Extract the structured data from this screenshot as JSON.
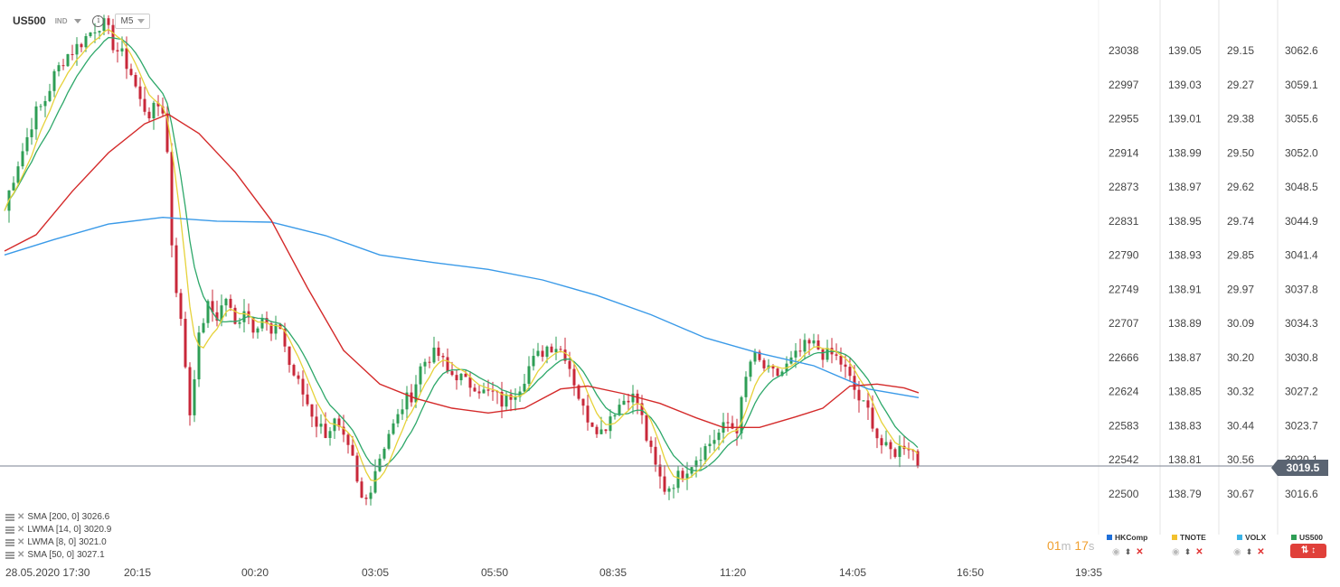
{
  "header": {
    "symbol": "US500",
    "symbol_type": "IND",
    "info_icon": "info-icon",
    "timeframe": "M5"
  },
  "current_price": "3019.5",
  "timer": {
    "min": "01",
    "min_unit": "m",
    "sec": "17",
    "sec_unit": "s"
  },
  "indicators": [
    {
      "label": "SMA [200,  0]",
      "value": "3026.6"
    },
    {
      "label": "LWMA [14,  0]",
      "value": "3020.9"
    },
    {
      "label": "LWMA [8,  0]",
      "value": "3021.0"
    },
    {
      "label": "SMA [50,  0]",
      "value": "3027.1"
    }
  ],
  "symbols": [
    {
      "name": "HKComp",
      "color": "#1e6fd9"
    },
    {
      "name": "TNOTE",
      "color": "#f2c12e"
    },
    {
      "name": "VOLX",
      "color": "#3bb3e6"
    },
    {
      "name": "US500",
      "color": "#2e9e55"
    }
  ],
  "chart_data": {
    "type": "candlestick",
    "x_ticks": [
      "28.05.2020  17:30",
      "20:15",
      "00:20",
      "03:05",
      "05:50",
      "08:35",
      "11:20",
      "14:05",
      "16:50",
      "19:35"
    ],
    "axes": [
      {
        "name": "HKComp",
        "ticks": [
          "23038",
          "22997",
          "22955",
          "22914",
          "22873",
          "22831",
          "22790",
          "22749",
          "22707",
          "22666",
          "22624",
          "22583",
          "22542",
          "22500"
        ]
      },
      {
        "name": "TNOTE",
        "ticks": [
          "139.05",
          "139.03",
          "139.01",
          "138.99",
          "138.97",
          "138.95",
          "138.93",
          "138.91",
          "138.89",
          "138.87",
          "138.85",
          "138.83",
          "138.81",
          "138.79"
        ]
      },
      {
        "name": "VOLX",
        "ticks": [
          "29.15",
          "29.27",
          "29.38",
          "29.50",
          "29.62",
          "29.74",
          "29.85",
          "29.97",
          "30.09",
          "30.20",
          "30.32",
          "30.44",
          "30.56",
          "30.67"
        ]
      },
      {
        "name": "US500",
        "ticks": [
          "3062.6",
          "3059.1",
          "3055.6",
          "3052.0",
          "3048.5",
          "3044.9",
          "3041.4",
          "3037.8",
          "3034.3",
          "3030.8",
          "3027.2",
          "3023.7",
          "3020.1",
          "3016.6"
        ]
      }
    ],
    "y_range": [
      3015.0,
      3066.0
    ],
    "close_path": [
      [
        0,
        3044
      ],
      [
        10,
        3048
      ],
      [
        20,
        3051
      ],
      [
        28,
        3053
      ],
      [
        38,
        3056
      ],
      [
        48,
        3057
      ],
      [
        60,
        3060
      ],
      [
        72,
        3062
      ],
      [
        85,
        3063
      ],
      [
        95,
        3064
      ],
      [
        105,
        3065
      ],
      [
        112,
        3065.5
      ],
      [
        118,
        3065
      ],
      [
        126,
        3063
      ],
      [
        136,
        3062
      ],
      [
        146,
        3060
      ],
      [
        156,
        3057
      ],
      [
        166,
        3056
      ],
      [
        176,
        3057
      ],
      [
        184,
        3056
      ],
      [
        186,
        3048
      ],
      [
        192,
        3040
      ],
      [
        198,
        3036
      ],
      [
        204,
        3031
      ],
      [
        210,
        3025
      ],
      [
        216,
        3030
      ],
      [
        222,
        3034
      ],
      [
        230,
        3036
      ],
      [
        240,
        3035
      ],
      [
        250,
        3037
      ],
      [
        260,
        3034
      ],
      [
        270,
        3036
      ],
      [
        280,
        3034
      ],
      [
        290,
        3035
      ],
      [
        300,
        3033
      ],
      [
        310,
        3034
      ],
      [
        320,
        3030
      ],
      [
        330,
        3028
      ],
      [
        340,
        3026
      ],
      [
        350,
        3024
      ],
      [
        360,
        3023
      ],
      [
        370,
        3024
      ],
      [
        380,
        3022
      ],
      [
        390,
        3020
      ],
      [
        398,
        3016
      ],
      [
        406,
        3016
      ],
      [
        414,
        3019
      ],
      [
        422,
        3021
      ],
      [
        430,
        3023
      ],
      [
        438,
        3024
      ],
      [
        446,
        3026
      ],
      [
        456,
        3027
      ],
      [
        466,
        3030
      ],
      [
        476,
        3031
      ],
      [
        486,
        3031
      ],
      [
        496,
        3029
      ],
      [
        506,
        3029
      ],
      [
        516,
        3028
      ],
      [
        526,
        3028
      ],
      [
        536,
        3027
      ],
      [
        546,
        3027
      ],
      [
        556,
        3026
      ],
      [
        566,
        3027
      ],
      [
        576,
        3028
      ],
      [
        586,
        3030
      ],
      [
        596,
        3031
      ],
      [
        606,
        3032
      ],
      [
        616,
        3032
      ],
      [
        626,
        3031
      ],
      [
        636,
        3028
      ],
      [
        646,
        3025
      ],
      [
        656,
        3024
      ],
      [
        666,
        3023
      ],
      [
        676,
        3025
      ],
      [
        686,
        3026
      ],
      [
        696,
        3027
      ],
      [
        706,
        3026
      ],
      [
        716,
        3022
      ],
      [
        726,
        3019
      ],
      [
        736,
        3017
      ],
      [
        746,
        3018
      ],
      [
        756,
        3019
      ],
      [
        766,
        3020
      ],
      [
        776,
        3021
      ],
      [
        786,
        3022
      ],
      [
        796,
        3023
      ],
      [
        806,
        3024
      ],
      [
        814,
        3023
      ],
      [
        820,
        3026
      ],
      [
        826,
        3029
      ],
      [
        832,
        3031
      ],
      [
        842,
        3030
      ],
      [
        852,
        3029
      ],
      [
        862,
        3029
      ],
      [
        872,
        3030
      ],
      [
        882,
        3031
      ],
      [
        892,
        3032
      ],
      [
        902,
        3032
      ],
      [
        912,
        3031
      ],
      [
        922,
        3031
      ],
      [
        932,
        3030
      ],
      [
        942,
        3028
      ],
      [
        952,
        3026
      ],
      [
        962,
        3025
      ],
      [
        972,
        3022
      ],
      [
        982,
        3021
      ],
      [
        992,
        3021
      ],
      [
        1002,
        3022
      ],
      [
        1010,
        3021
      ],
      [
        1016,
        3019.5
      ]
    ],
    "series": [
      {
        "name": "SMA [200,  0]",
        "color": "#3a9ae8",
        "values": [
          [
            5,
            3041.4
          ],
          [
            60,
            3043
          ],
          [
            120,
            3044.6
          ],
          [
            180,
            3045.3
          ],
          [
            240,
            3044.9
          ],
          [
            300,
            3044.8
          ],
          [
            360,
            3043.4
          ],
          [
            420,
            3041.4
          ],
          [
            480,
            3040.6
          ],
          [
            540,
            3039.9
          ],
          [
            600,
            3038.8
          ],
          [
            660,
            3037.2
          ],
          [
            720,
            3035.2
          ],
          [
            780,
            3032.8
          ],
          [
            840,
            3031.2
          ],
          [
            900,
            3029.9
          ],
          [
            960,
            3027.5
          ],
          [
            1016,
            3026.6
          ]
        ]
      },
      {
        "name": "SMA [50,  0]",
        "color": "#d42a2a",
        "values": [
          [
            5,
            3041.8
          ],
          [
            40,
            3043.5
          ],
          [
            80,
            3048
          ],
          [
            120,
            3052
          ],
          [
            160,
            3055
          ],
          [
            186,
            3056
          ],
          [
            220,
            3054
          ],
          [
            260,
            3050
          ],
          [
            300,
            3045
          ],
          [
            340,
            3038
          ],
          [
            380,
            3031.5
          ],
          [
            420,
            3028
          ],
          [
            460,
            3026.5
          ],
          [
            500,
            3025.5
          ],
          [
            540,
            3025
          ],
          [
            580,
            3025.5
          ],
          [
            620,
            3027.5
          ],
          [
            650,
            3027.8
          ],
          [
            690,
            3027
          ],
          [
            730,
            3026
          ],
          [
            770,
            3024.5
          ],
          [
            800,
            3023.5
          ],
          [
            840,
            3023.5
          ],
          [
            880,
            3024.6
          ],
          [
            910,
            3025.5
          ],
          [
            940,
            3027.8
          ],
          [
            970,
            3028
          ],
          [
            1000,
            3027.6
          ],
          [
            1016,
            3027.1
          ]
        ]
      },
      {
        "name": "LWMA [14,  0]",
        "color": "#2ea86a",
        "values": []
      },
      {
        "name": "LWMA [8,  0]",
        "color": "#e6d23a",
        "values": []
      }
    ],
    "current_price": 3019.5
  }
}
